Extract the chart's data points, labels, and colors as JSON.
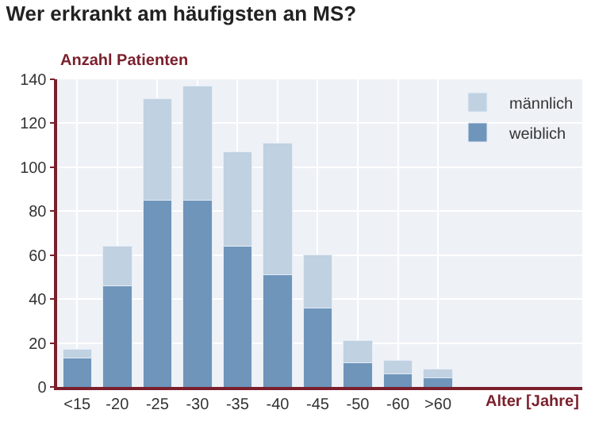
{
  "chart_data": {
    "type": "bar",
    "title": "Wer erkrankt am häufigsten an MS?",
    "ylabel": "Anzahl Patienten",
    "xlabel": "Alter [Jahre]",
    "categories": [
      "<15",
      "-20",
      "-25",
      "-30",
      "-35",
      "-40",
      "-45",
      "-50",
      "-60",
      ">60"
    ],
    "stacked": true,
    "series": [
      {
        "name": "weiblich",
        "color": "#6f95bb",
        "values": [
          13,
          46,
          85,
          85,
          64,
          51,
          36,
          11,
          6,
          4
        ]
      },
      {
        "name": "männlich",
        "color": "#c0d1e1",
        "values": [
          4,
          18,
          46,
          52,
          43,
          60,
          24,
          10,
          6,
          4
        ]
      }
    ],
    "ylim": [
      0,
      140
    ],
    "yticks": [
      0,
      20,
      40,
      60,
      80,
      100,
      120,
      140
    ],
    "grid": true,
    "legend": "top right"
  }
}
